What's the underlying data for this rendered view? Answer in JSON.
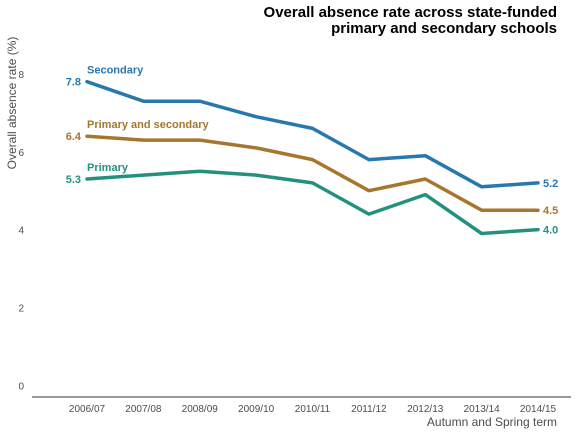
{
  "chart_data": {
    "type": "line",
    "title_lines": [
      "Overall absence rate across state-funded",
      "primary and secondary schools"
    ],
    "xlabel": "Autumn and Spring term",
    "ylabel": "Overall absence rate (%)",
    "categories": [
      "2006/07",
      "2007/08",
      "2008/09",
      "2009/10",
      "2010/11",
      "2011/12",
      "2012/13",
      "2013/14",
      "2014/15"
    ],
    "y_ticks": [
      "0",
      "2",
      "4",
      "6",
      "8"
    ],
    "ylim": [
      -0.3,
      9
    ],
    "grid": false,
    "series": [
      {
        "name": "Secondary",
        "color": "#2878b0",
        "values": [
          7.8,
          7.3,
          7.3,
          6.9,
          6.6,
          5.8,
          5.9,
          5.1,
          5.2
        ],
        "start_label": "7.8",
        "end_label": "5.2"
      },
      {
        "name": "Primary and secondary",
        "color": "#a6762f",
        "values": [
          6.4,
          6.3,
          6.3,
          6.1,
          5.8,
          5.0,
          5.3,
          4.5,
          4.5
        ],
        "start_label": "6.4",
        "end_label": "4.5"
      },
      {
        "name": "Primary",
        "color": "#24917f",
        "values": [
          5.3,
          5.4,
          5.5,
          5.4,
          5.2,
          4.4,
          4.9,
          3.9,
          4.0
        ],
        "start_label": "5.3",
        "end_label": "4.0"
      }
    ]
  }
}
